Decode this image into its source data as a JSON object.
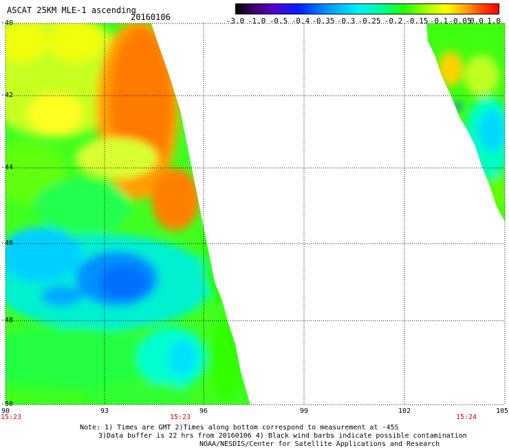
{
  "header": {
    "title": "ASCAT 25KM MLE-1 ascending",
    "date": "20160106"
  },
  "colorbar": {
    "labels": [
      "-3.0",
      "-1.0",
      "-0.5",
      "-0.4",
      "-0.35",
      "-0.3",
      "-0.25",
      "-0.2",
      "-0.15",
      "-0.1",
      "-0.05",
      "0.0",
      "1.0"
    ]
  },
  "axes": {
    "lat_labels": [
      "-40",
      "-42",
      "-44",
      "-46",
      "-48",
      "-50"
    ],
    "lat_values": [
      -40,
      -42,
      -44,
      -46,
      -48,
      -50
    ],
    "lon_labels": [
      "90",
      "93",
      "96",
      "99",
      "102",
      "105"
    ],
    "lon_values": [
      90,
      93,
      96,
      99,
      102,
      105
    ]
  },
  "times": [
    "15:23",
    "15:23",
    "15:24"
  ],
  "notes": {
    "line1": "Note: 1) Times are GMT 2)Times along bottom correspond to measurement at -45S",
    "line2": "3)Data buffer is 22 hrs from 20160106 4) Black wind barbs indicate possible contamination",
    "line3": "NOAA/NESDIS/Center for Satellite Applications and Research"
  },
  "colors": {
    "orange": "#ff7800",
    "yellow": "#f0ff00",
    "green": "#28ff00",
    "lightgreen": "#90ff00",
    "cyan": "#00ffd8",
    "skyblue": "#00c8ff",
    "blue": "#0080ff",
    "darkblue": "#2050ff",
    "time": "#d00000"
  }
}
